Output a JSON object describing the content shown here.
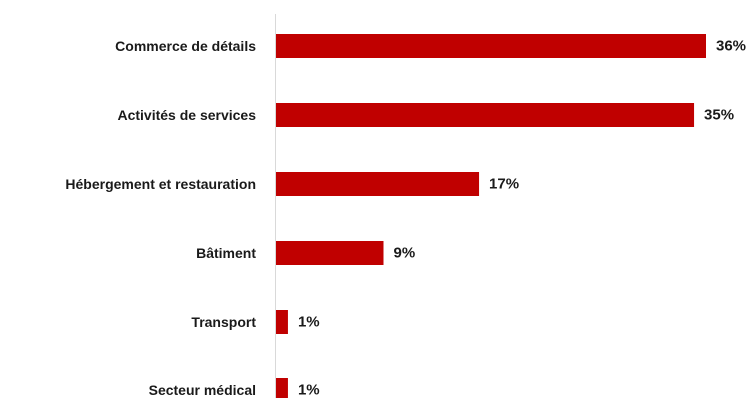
{
  "chart_data": {
    "type": "bar",
    "orientation": "horizontal",
    "categories": [
      "Commerce de détails",
      "Activités de services",
      "Hébergement et restauration",
      "Bâtiment",
      "Transport",
      "Secteur médical"
    ],
    "values": [
      36,
      35,
      17,
      9,
      1,
      1
    ],
    "value_labels": [
      "36%",
      "35%",
      "17%",
      "9%",
      "1%",
      "1%"
    ],
    "unit": "%",
    "title": "",
    "xlabel": "",
    "ylabel": "",
    "xlim": [
      0,
      36
    ],
    "grid": false,
    "legend": "none",
    "bar_color": "#c00000",
    "axis_color": "#d9d9d9"
  }
}
